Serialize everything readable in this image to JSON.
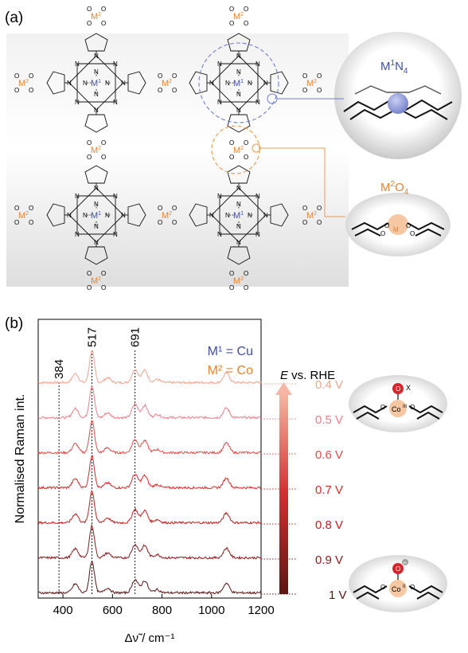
{
  "panel_a": {
    "label": "(a)",
    "metal1": "M",
    "metal1_sup": "1",
    "metal2": "M",
    "metal2_sup": "2",
    "atom_N": "N",
    "atom_O": "O",
    "inset_top": {
      "base": "M",
      "sup": "1",
      "el": "N",
      "sub": "4"
    },
    "inset_bottom": {
      "base": "M",
      "sup": "2",
      "el": "O",
      "sub": "4"
    },
    "colors": {
      "m1": "#3f4fa6",
      "m2": "#e8822e",
      "dash_blue": "#6f7fc9",
      "dash_orange": "#ef9a50"
    }
  },
  "chart_data": {
    "type": "line",
    "panel_label": "(b)",
    "title": "",
    "xlabel": "Δν̃ / cm⁻¹",
    "ylabel": "Normalised Raman int.",
    "xlim": [
      300,
      1200
    ],
    "xticks": [
      400,
      600,
      800,
      1000,
      1200
    ],
    "legend": {
      "m1": "M¹ = Cu",
      "m2": "M² = Co",
      "title_italic": "E",
      "title_rest": " vs. RHE"
    },
    "peaks": [
      {
        "x": 384,
        "label": "384"
      },
      {
        "x": 517,
        "label": "517"
      },
      {
        "x": 691,
        "label": "691"
      }
    ],
    "band_features": [
      {
        "x": 450,
        "h": 0.28
      },
      {
        "x": 517,
        "h": 1.0
      },
      {
        "x": 580,
        "h": 0.15
      },
      {
        "x": 691,
        "h": 0.42
      },
      {
        "x": 730,
        "h": 0.38
      },
      {
        "x": 780,
        "h": 0.1
      },
      {
        "x": 1060,
        "h": 0.3
      }
    ],
    "series": [
      {
        "name": "0.4 V",
        "color": "#f3a48f"
      },
      {
        "name": "0.5 V",
        "color": "#ea7f8a"
      },
      {
        "name": "0.6 V",
        "color": "#e24a4a"
      },
      {
        "name": "0.7 V",
        "color": "#d82a2a"
      },
      {
        "name": "0.8 V",
        "color": "#c11f1f"
      },
      {
        "name": "0.9 V",
        "color": "#8a1a1a"
      },
      {
        "name": "1 V",
        "color": "#5e1414"
      }
    ],
    "structure_top": {
      "ox": "O",
      "x": "X",
      "co": "Co",
      "ox_state": "III",
      "o": "O"
    },
    "structure_bottom": {
      "ox": "O",
      "h": "H",
      "co": "Co",
      "ox_state": "II",
      "o": "O"
    }
  }
}
